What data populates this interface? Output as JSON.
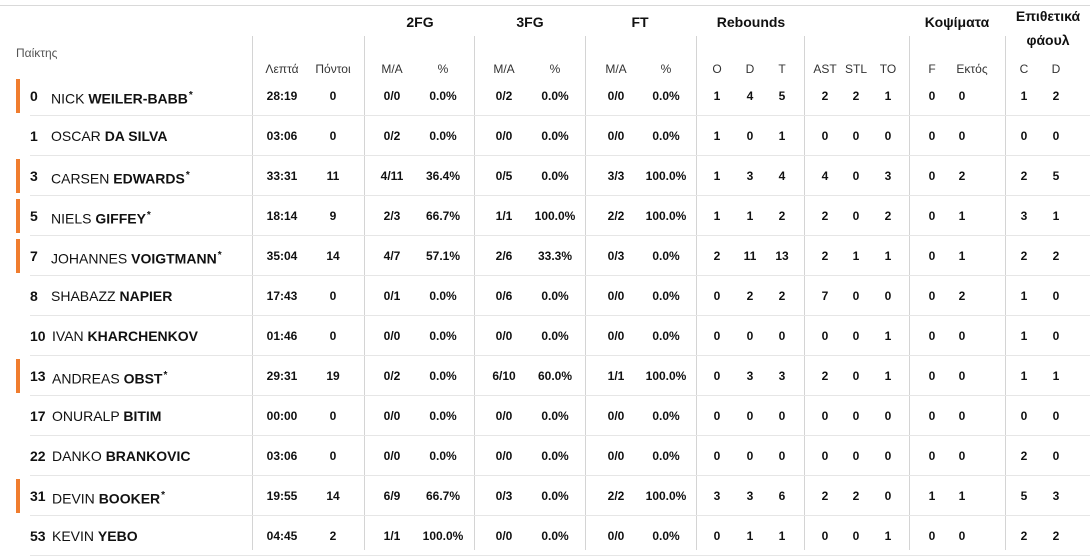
{
  "header": {
    "player": "Παίκτης",
    "groups": {
      "fg2": "2FG",
      "fg3": "3FG",
      "ft": "FT",
      "rebounds": "Rebounds",
      "blocks": "Κοψίματα",
      "fouls": "Επιθετικά φάουλ"
    },
    "columns": {
      "min": "Λεπτά",
      "pts": "Πόντοι",
      "fg2_ma": "M/A",
      "fg2_pct": "%",
      "fg3_ma": "M/A",
      "fg3_pct": "%",
      "ft_ma": "M/A",
      "ft_pct": "%",
      "o": "O",
      "d": "D",
      "t": "T",
      "ast": "AST",
      "stl": "STL",
      "to": "TO",
      "f": "F",
      "ektos": "Εκτός",
      "c": "C",
      "dd": "D"
    }
  },
  "players": [
    {
      "num": "0",
      "first": "NICK",
      "last": "WEILER-BABB",
      "starter": true,
      "stats": [
        "28:19",
        "0",
        "0/0",
        "0.0%",
        "0/2",
        "0.0%",
        "0/0",
        "0.0%",
        "1",
        "4",
        "5",
        "2",
        "2",
        "1",
        "0",
        "0",
        "1",
        "2"
      ]
    },
    {
      "num": "1",
      "first": "OSCAR",
      "last": "DA SILVA",
      "starter": false,
      "stats": [
        "03:06",
        "0",
        "0/2",
        "0.0%",
        "0/0",
        "0.0%",
        "0/0",
        "0.0%",
        "1",
        "0",
        "1",
        "0",
        "0",
        "0",
        "0",
        "0",
        "0",
        "0"
      ]
    },
    {
      "num": "3",
      "first": "CARSEN",
      "last": "EDWARDS",
      "starter": true,
      "stats": [
        "33:31",
        "11",
        "4/11",
        "36.4%",
        "0/5",
        "0.0%",
        "3/3",
        "100.0%",
        "1",
        "3",
        "4",
        "4",
        "0",
        "3",
        "0",
        "2",
        "2",
        "5"
      ]
    },
    {
      "num": "5",
      "first": "NIELS",
      "last": "GIFFEY",
      "starter": true,
      "stats": [
        "18:14",
        "9",
        "2/3",
        "66.7%",
        "1/1",
        "100.0%",
        "2/2",
        "100.0%",
        "1",
        "1",
        "2",
        "2",
        "0",
        "2",
        "0",
        "1",
        "3",
        "1"
      ]
    },
    {
      "num": "7",
      "first": "JOHANNES",
      "last": "VOIGTMANN",
      "starter": true,
      "stats": [
        "35:04",
        "14",
        "4/7",
        "57.1%",
        "2/6",
        "33.3%",
        "0/3",
        "0.0%",
        "2",
        "11",
        "13",
        "2",
        "1",
        "1",
        "0",
        "1",
        "2",
        "2"
      ]
    },
    {
      "num": "8",
      "first": "SHABAZZ",
      "last": "NAPIER",
      "starter": false,
      "stats": [
        "17:43",
        "0",
        "0/1",
        "0.0%",
        "0/6",
        "0.0%",
        "0/0",
        "0.0%",
        "0",
        "2",
        "2",
        "7",
        "0",
        "0",
        "0",
        "2",
        "1",
        "0"
      ]
    },
    {
      "num": "10",
      "first": "IVAN",
      "last": "KHARCHENKOV",
      "starter": false,
      "stats": [
        "01:46",
        "0",
        "0/0",
        "0.0%",
        "0/0",
        "0.0%",
        "0/0",
        "0.0%",
        "0",
        "0",
        "0",
        "0",
        "0",
        "1",
        "0",
        "0",
        "1",
        "0"
      ]
    },
    {
      "num": "13",
      "first": "ANDREAS",
      "last": "OBST",
      "starter": true,
      "stats": [
        "29:31",
        "19",
        "0/2",
        "0.0%",
        "6/10",
        "60.0%",
        "1/1",
        "100.0%",
        "0",
        "3",
        "3",
        "2",
        "0",
        "1",
        "0",
        "0",
        "1",
        "1"
      ]
    },
    {
      "num": "17",
      "first": "ONURALP",
      "last": "BITIM",
      "starter": false,
      "stats": [
        "00:00",
        "0",
        "0/0",
        "0.0%",
        "0/0",
        "0.0%",
        "0/0",
        "0.0%",
        "0",
        "0",
        "0",
        "0",
        "0",
        "0",
        "0",
        "0",
        "0",
        "0"
      ]
    },
    {
      "num": "22",
      "first": "DANKO",
      "last": "BRANKOVIC",
      "starter": false,
      "stats": [
        "03:06",
        "0",
        "0/0",
        "0.0%",
        "0/0",
        "0.0%",
        "0/0",
        "0.0%",
        "0",
        "0",
        "0",
        "0",
        "0",
        "0",
        "0",
        "0",
        "2",
        "0"
      ]
    },
    {
      "num": "31",
      "first": "DEVIN",
      "last": "BOOKER",
      "starter": true,
      "stats": [
        "19:55",
        "14",
        "6/9",
        "66.7%",
        "0/3",
        "0.0%",
        "2/2",
        "100.0%",
        "3",
        "3",
        "6",
        "2",
        "2",
        "0",
        "1",
        "1",
        "5",
        "3"
      ]
    },
    {
      "num": "53",
      "first": "KEVIN",
      "last": "YEBO",
      "starter": false,
      "stats": [
        "04:45",
        "2",
        "1/1",
        "100.0%",
        "0/0",
        "0.0%",
        "0/0",
        "0.0%",
        "0",
        "1",
        "1",
        "0",
        "0",
        "1",
        "0",
        "0",
        "2",
        "2"
      ]
    }
  ],
  "colors": {
    "starter_marker": "#f07d2e",
    "grid": "#d4d4d4"
  }
}
